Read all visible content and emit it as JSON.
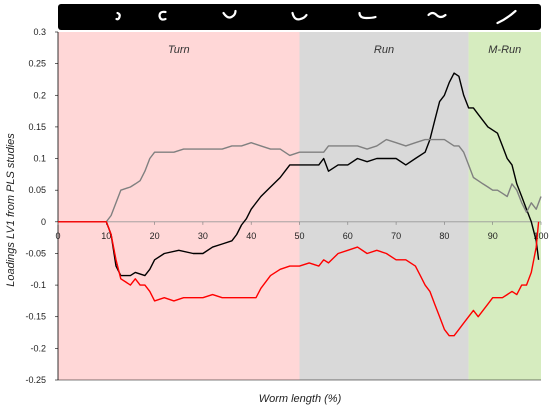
{
  "chart_data": {
    "type": "line",
    "title": "",
    "xlabel": "Worm length (%)",
    "ylabel": "Loadings LV1 from PLS studies",
    "xlim": [
      0,
      100
    ],
    "ylim": [
      -0.25,
      0.3
    ],
    "xticks": [
      0,
      10,
      20,
      30,
      40,
      50,
      60,
      70,
      80,
      90,
      100
    ],
    "yticks": [
      -0.25,
      -0.2,
      -0.15,
      -0.1,
      -0.05,
      0,
      0.05,
      0.1,
      0.15,
      0.2,
      0.25,
      0.3
    ],
    "ytick_labels": [
      "-0.25",
      "-0.2",
      "-0.15",
      "-0.1",
      "-0.05",
      "0",
      "0.05",
      "0.1",
      "0.15",
      "0.2",
      "0.25",
      "0.3"
    ],
    "regions": [
      {
        "label": "Turn",
        "x_start": 0,
        "x_end": 50,
        "color": "#ffd7d7"
      },
      {
        "label": "Run",
        "x_start": 50,
        "x_end": 85,
        "color": "#d9d9d9"
      },
      {
        "label": "M-Run",
        "x_start": 85,
        "x_end": 100,
        "color": "#d6ecbf"
      }
    ],
    "header_strip": {
      "color": "#000000",
      "icon_count": 7
    },
    "grid": false,
    "series": [
      {
        "color": "#000000",
        "points": [
          [
            0,
            0
          ],
          [
            10,
            0
          ],
          [
            11,
            -0.02
          ],
          [
            12,
            -0.07
          ],
          [
            13,
            -0.085
          ],
          [
            15,
            -0.085
          ],
          [
            16,
            -0.08
          ],
          [
            18,
            -0.085
          ],
          [
            19,
            -0.075
          ],
          [
            20,
            -0.06
          ],
          [
            22,
            -0.05
          ],
          [
            25,
            -0.045
          ],
          [
            28,
            -0.05
          ],
          [
            30,
            -0.05
          ],
          [
            32,
            -0.04
          ],
          [
            34,
            -0.035
          ],
          [
            36,
            -0.03
          ],
          [
            37,
            -0.02
          ],
          [
            38,
            -0.005
          ],
          [
            39,
            0.005
          ],
          [
            40,
            0.02
          ],
          [
            42,
            0.04
          ],
          [
            44,
            0.055
          ],
          [
            46,
            0.07
          ],
          [
            47,
            0.08
          ],
          [
            48,
            0.09
          ],
          [
            50,
            0.09
          ],
          [
            52,
            0.09
          ],
          [
            54,
            0.09
          ],
          [
            55,
            0.1
          ],
          [
            56,
            0.08
          ],
          [
            58,
            0.09
          ],
          [
            60,
            0.09
          ],
          [
            62,
            0.1
          ],
          [
            64,
            0.095
          ],
          [
            66,
            0.1
          ],
          [
            68,
            0.1
          ],
          [
            70,
            0.1
          ],
          [
            72,
            0.09
          ],
          [
            74,
            0.1
          ],
          [
            76,
            0.11
          ],
          [
            77,
            0.13
          ],
          [
            78,
            0.16
          ],
          [
            79,
            0.19
          ],
          [
            80,
            0.2
          ],
          [
            81,
            0.22
          ],
          [
            82,
            0.235
          ],
          [
            83,
            0.23
          ],
          [
            84,
            0.2
          ],
          [
            85,
            0.18
          ],
          [
            86,
            0.18
          ],
          [
            87,
            0.17
          ],
          [
            88,
            0.16
          ],
          [
            89,
            0.15
          ],
          [
            90,
            0.145
          ],
          [
            91,
            0.14
          ],
          [
            92,
            0.12
          ],
          [
            93,
            0.1
          ],
          [
            94,
            0.09
          ],
          [
            95,
            0.06
          ],
          [
            96,
            0.04
          ],
          [
            97,
            0.02
          ],
          [
            98,
            0
          ],
          [
            99,
            -0.03
          ],
          [
            99.5,
            -0.06
          ]
        ]
      },
      {
        "color": "#808080",
        "points": [
          [
            0,
            0
          ],
          [
            10,
            0
          ],
          [
            11,
            0.01
          ],
          [
            12,
            0.03
          ],
          [
            13,
            0.05
          ],
          [
            15,
            0.055
          ],
          [
            16,
            0.06
          ],
          [
            17,
            0.065
          ],
          [
            18,
            0.08
          ],
          [
            19,
            0.1
          ],
          [
            20,
            0.11
          ],
          [
            22,
            0.11
          ],
          [
            24,
            0.11
          ],
          [
            26,
            0.115
          ],
          [
            28,
            0.115
          ],
          [
            30,
            0.115
          ],
          [
            32,
            0.115
          ],
          [
            34,
            0.115
          ],
          [
            36,
            0.12
          ],
          [
            38,
            0.12
          ],
          [
            40,
            0.125
          ],
          [
            42,
            0.12
          ],
          [
            44,
            0.115
          ],
          [
            46,
            0.115
          ],
          [
            48,
            0.105
          ],
          [
            50,
            0.11
          ],
          [
            52,
            0.11
          ],
          [
            54,
            0.11
          ],
          [
            55,
            0.11
          ],
          [
            56,
            0.12
          ],
          [
            58,
            0.12
          ],
          [
            60,
            0.12
          ],
          [
            62,
            0.12
          ],
          [
            64,
            0.115
          ],
          [
            66,
            0.12
          ],
          [
            68,
            0.13
          ],
          [
            70,
            0.125
          ],
          [
            72,
            0.12
          ],
          [
            74,
            0.125
          ],
          [
            76,
            0.13
          ],
          [
            78,
            0.13
          ],
          [
            80,
            0.13
          ],
          [
            82,
            0.12
          ],
          [
            83,
            0.12
          ],
          [
            84,
            0.11
          ],
          [
            85,
            0.09
          ],
          [
            86,
            0.07
          ],
          [
            87,
            0.065
          ],
          [
            88,
            0.06
          ],
          [
            89,
            0.055
          ],
          [
            90,
            0.05
          ],
          [
            91,
            0.05
          ],
          [
            92,
            0.045
          ],
          [
            93,
            0.04
          ],
          [
            94,
            0.06
          ],
          [
            95,
            0.05
          ],
          [
            96,
            0.03
          ],
          [
            97,
            0.015
          ],
          [
            98,
            0.03
          ],
          [
            99,
            0.02
          ],
          [
            100,
            0.04
          ]
        ]
      },
      {
        "color": "#ff0000",
        "points": [
          [
            0,
            0
          ],
          [
            10,
            0
          ],
          [
            11,
            -0.02
          ],
          [
            12,
            -0.06
          ],
          [
            13,
            -0.09
          ],
          [
            14,
            -0.095
          ],
          [
            15,
            -0.1
          ],
          [
            16,
            -0.09
          ],
          [
            17,
            -0.1
          ],
          [
            18,
            -0.1
          ],
          [
            19,
            -0.11
          ],
          [
            20,
            -0.125
          ],
          [
            22,
            -0.12
          ],
          [
            24,
            -0.125
          ],
          [
            26,
            -0.12
          ],
          [
            28,
            -0.12
          ],
          [
            30,
            -0.12
          ],
          [
            32,
            -0.115
          ],
          [
            34,
            -0.12
          ],
          [
            36,
            -0.12
          ],
          [
            38,
            -0.12
          ],
          [
            40,
            -0.12
          ],
          [
            41,
            -0.12
          ],
          [
            42,
            -0.105
          ],
          [
            44,
            -0.085
          ],
          [
            46,
            -0.075
          ],
          [
            48,
            -0.07
          ],
          [
            50,
            -0.07
          ],
          [
            52,
            -0.065
          ],
          [
            54,
            -0.07
          ],
          [
            55,
            -0.06
          ],
          [
            56,
            -0.065
          ],
          [
            58,
            -0.05
          ],
          [
            60,
            -0.045
          ],
          [
            62,
            -0.04
          ],
          [
            64,
            -0.05
          ],
          [
            66,
            -0.045
          ],
          [
            68,
            -0.05
          ],
          [
            70,
            -0.06
          ],
          [
            72,
            -0.06
          ],
          [
            74,
            -0.07
          ],
          [
            75,
            -0.085
          ],
          [
            76,
            -0.1
          ],
          [
            77,
            -0.11
          ],
          [
            78,
            -0.13
          ],
          [
            79,
            -0.15
          ],
          [
            80,
            -0.17
          ],
          [
            81,
            -0.18
          ],
          [
            82,
            -0.18
          ],
          [
            83,
            -0.17
          ],
          [
            84,
            -0.16
          ],
          [
            85,
            -0.15
          ],
          [
            86,
            -0.14
          ],
          [
            87,
            -0.15
          ],
          [
            88,
            -0.14
          ],
          [
            89,
            -0.13
          ],
          [
            90,
            -0.12
          ],
          [
            92,
            -0.12
          ],
          [
            93,
            -0.115
          ],
          [
            94,
            -0.11
          ],
          [
            95,
            -0.115
          ],
          [
            96,
            -0.1
          ],
          [
            97,
            -0.1
          ],
          [
            98,
            -0.08
          ],
          [
            99,
            -0.04
          ],
          [
            99.5,
            0
          ]
        ]
      }
    ]
  }
}
